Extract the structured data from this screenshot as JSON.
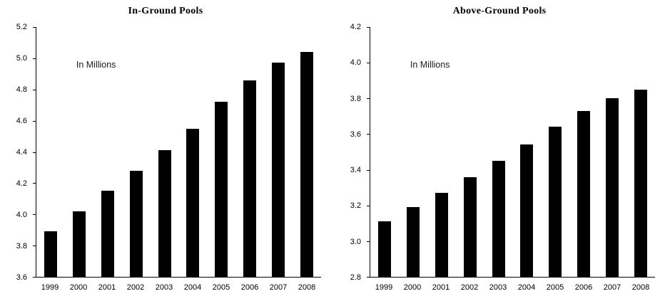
{
  "chart_data": [
    {
      "type": "bar",
      "title": "In-Ground Pools",
      "annotation": "In Millions",
      "categories": [
        "1999",
        "2000",
        "2001",
        "2002",
        "2003",
        "2004",
        "2005",
        "2006",
        "2007",
        "2008"
      ],
      "values": [
        3.89,
        4.02,
        4.15,
        4.28,
        4.41,
        4.55,
        4.72,
        4.86,
        4.97,
        5.04
      ],
      "ylim": [
        3.6,
        5.2
      ],
      "yticks": [
        "5.2",
        "5.0",
        "4.8",
        "4.6",
        "4.4",
        "4.2",
        "4.0",
        "3.8",
        "3.6"
      ],
      "xlabel": "",
      "ylabel": "",
      "legend": "none",
      "grid": false,
      "bar_color": "#000000"
    },
    {
      "type": "bar",
      "title": "Above-Ground Pools",
      "annotation": "In Millions",
      "categories": [
        "1999",
        "2000",
        "2001",
        "2002",
        "2003",
        "2004",
        "2005",
        "2006",
        "2007",
        "2008"
      ],
      "values": [
        3.11,
        3.19,
        3.27,
        3.36,
        3.45,
        3.54,
        3.64,
        3.73,
        3.8,
        3.85
      ],
      "ylim": [
        2.8,
        4.2
      ],
      "yticks": [
        "4.2",
        "4.0",
        "3.8",
        "3.6",
        "3.4",
        "3.2",
        "3.0",
        "2.8"
      ],
      "xlabel": "",
      "ylabel": "",
      "legend": "none",
      "grid": false,
      "bar_color": "#000000"
    }
  ]
}
